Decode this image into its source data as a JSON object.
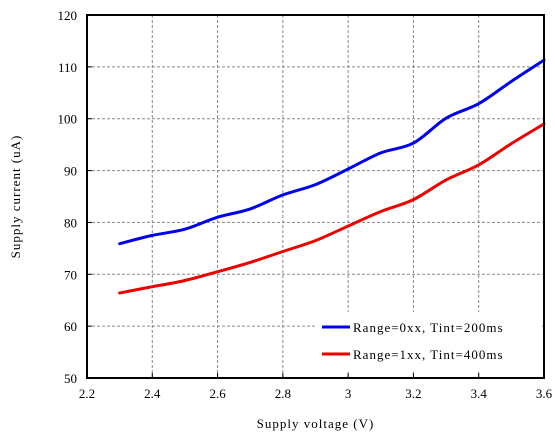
{
  "chart_data": {
    "type": "line",
    "title": "",
    "xlabel": "Supply voltage (V)",
    "ylabel": "Supply current (uA)",
    "xlim": [
      2.2,
      3.6
    ],
    "ylim": [
      50,
      120
    ],
    "xticks": [
      "2.2",
      "2.4",
      "2.6",
      "2.8",
      "3",
      "3.2",
      "3.4",
      "3.6"
    ],
    "yticks": [
      "50",
      "60",
      "70",
      "80",
      "90",
      "100",
      "110",
      "120"
    ],
    "grid": "dashed",
    "legend_position": "bottom-right",
    "series": [
      {
        "name": "Range=0xx, Tint=200ms",
        "color": "#0000ee",
        "x": [
          2.3,
          2.4,
          2.5,
          2.6,
          2.7,
          2.8,
          2.9,
          3.0,
          3.1,
          3.2,
          3.3,
          3.4,
          3.5,
          3.6
        ],
        "y": [
          75.9,
          77.5,
          78.7,
          81.0,
          82.6,
          85.3,
          87.3,
          90.3,
          93.4,
          95.3,
          100.1,
          102.9,
          107.2,
          111.3
        ]
      },
      {
        "name": "Range=1xx, Tint=400ms",
        "color": "#ee0000",
        "x": [
          2.3,
          2.4,
          2.5,
          2.6,
          2.7,
          2.8,
          2.9,
          3.0,
          3.1,
          3.2,
          3.3,
          3.4,
          3.5,
          3.6
        ],
        "y": [
          66.4,
          67.6,
          68.8,
          70.5,
          72.3,
          74.4,
          76.5,
          79.3,
          82.1,
          84.4,
          88.2,
          91.1,
          95.2,
          99.0
        ]
      }
    ]
  }
}
